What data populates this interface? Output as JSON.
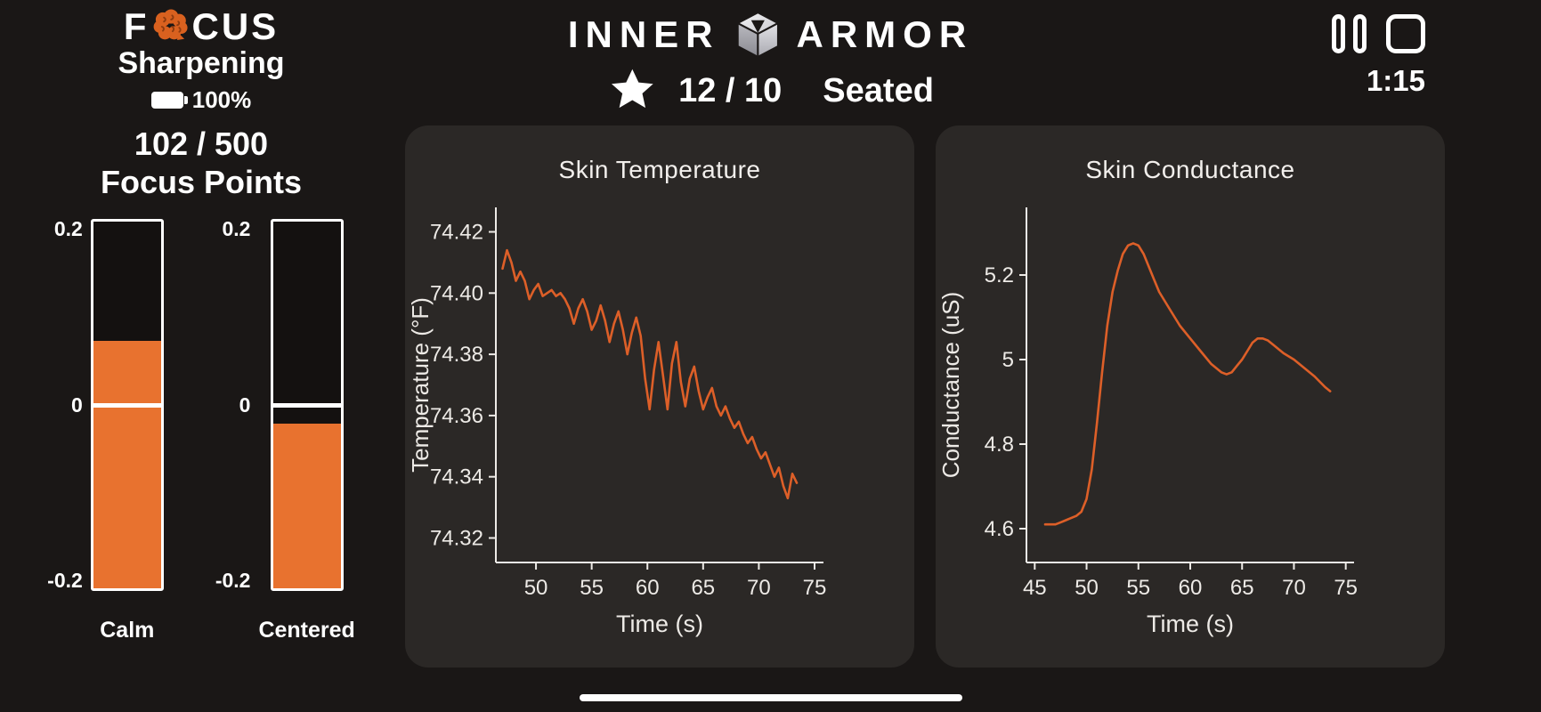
{
  "colors": {
    "background": "#1a1716",
    "card": "#2b2826",
    "accent": "#e8722f",
    "line": "#dd5f28",
    "text": "#ffffff",
    "axis": "#edeae6"
  },
  "icons": [
    "brain-icon",
    "battery-icon",
    "cube-icon",
    "star-icon",
    "pause-icon",
    "stop-icon"
  ],
  "sidebar": {
    "logo": {
      "left": "F",
      "right": "CUS"
    },
    "mode": "Sharpening",
    "battery": {
      "percent": "100%"
    },
    "score": "102 / 500",
    "score_label": "Focus Points",
    "gauges": {
      "min": -0.2,
      "max": 0.2,
      "tick_top": "0.2",
      "tick_mid": "0",
      "tick_bottom": "-0.2",
      "items": [
        {
          "label": "Calm",
          "value": 0.07
        },
        {
          "label": "Centered",
          "value": -0.02
        }
      ]
    }
  },
  "header": {
    "brand_left": "INNER",
    "brand_right": "ARMOR",
    "score": "12 / 10",
    "posture": "Seated",
    "timer": "1:15"
  },
  "chart_data": [
    {
      "type": "line",
      "title": "Skin Temperature",
      "xlabel": "Time (s)",
      "ylabel": "Temperature (°F)",
      "legend": null,
      "grid": false,
      "xlim": [
        46.4,
        75.8
      ],
      "ylim": [
        74.312,
        74.428
      ],
      "xticks": [
        50,
        55,
        60,
        65,
        70,
        75
      ],
      "xtick_labels": [
        "50",
        "55",
        "60",
        "65",
        "70",
        "75"
      ],
      "yticks": [
        74.32,
        74.34,
        74.36,
        74.38,
        74.4,
        74.42
      ],
      "ytick_labels": [
        "74.32",
        "74.34",
        "74.36",
        "74.38",
        "74.40",
        "74.42"
      ],
      "x": [
        47.0,
        47.4,
        47.8,
        48.2,
        48.6,
        49.0,
        49.4,
        49.8,
        50.2,
        50.6,
        51.0,
        51.4,
        51.8,
        52.2,
        52.6,
        53.0,
        53.4,
        53.8,
        54.2,
        54.6,
        55.0,
        55.4,
        55.8,
        56.2,
        56.6,
        57.0,
        57.4,
        57.8,
        58.2,
        58.6,
        59.0,
        59.4,
        59.8,
        60.2,
        60.6,
        61.0,
        61.4,
        61.8,
        62.2,
        62.6,
        63.0,
        63.4,
        63.8,
        64.2,
        64.6,
        65.0,
        65.4,
        65.8,
        66.2,
        66.6,
        67.0,
        67.4,
        67.8,
        68.2,
        68.6,
        69.0,
        69.4,
        69.8,
        70.2,
        70.6,
        71.0,
        71.4,
        71.8,
        72.2,
        72.6,
        73.0,
        73.4
      ],
      "y": [
        74.408,
        74.414,
        74.41,
        74.404,
        74.407,
        74.404,
        74.398,
        74.401,
        74.403,
        74.399,
        74.4,
        74.401,
        74.399,
        74.4,
        74.398,
        74.395,
        74.39,
        74.395,
        74.398,
        74.394,
        74.388,
        74.391,
        74.396,
        74.391,
        74.384,
        74.39,
        74.394,
        74.388,
        74.38,
        74.387,
        74.392,
        74.386,
        74.372,
        74.362,
        74.375,
        74.384,
        74.373,
        74.362,
        74.377,
        74.384,
        74.371,
        74.363,
        74.372,
        74.376,
        74.368,
        74.362,
        74.366,
        74.369,
        74.363,
        74.36,
        74.363,
        74.359,
        74.356,
        74.358,
        74.354,
        74.351,
        74.353,
        74.349,
        74.346,
        74.348,
        74.344,
        74.34,
        74.343,
        74.337,
        74.333,
        74.341,
        74.338
      ]
    },
    {
      "type": "line",
      "title": "Skin Conductance",
      "xlabel": "Time (s)",
      "ylabel": "Conductance (uS)",
      "legend": null,
      "grid": false,
      "xlim": [
        44.2,
        75.8
      ],
      "ylim": [
        4.52,
        5.36
      ],
      "xticks": [
        45,
        50,
        55,
        60,
        65,
        70,
        75
      ],
      "xtick_labels": [
        "45",
        "50",
        "55",
        "60",
        "65",
        "70",
        "75"
      ],
      "yticks": [
        4.6,
        4.8,
        5.0,
        5.2
      ],
      "ytick_labels": [
        "4.6",
        "4.8",
        "5",
        "5.2"
      ],
      "x": [
        46,
        46.5,
        47,
        47.5,
        48,
        48.5,
        49,
        49.5,
        50,
        50.5,
        51,
        51.5,
        52,
        52.5,
        53,
        53.5,
        54,
        54.5,
        55,
        55.5,
        56,
        56.5,
        57,
        57.5,
        58,
        59,
        60,
        61,
        62,
        63,
        63.5,
        64,
        64.5,
        65,
        65.5,
        66,
        66.5,
        67,
        67.5,
        68,
        68.5,
        69,
        70,
        71,
        72,
        73,
        73.5
      ],
      "y": [
        4.61,
        4.61,
        4.61,
        4.615,
        4.62,
        4.625,
        4.63,
        4.64,
        4.67,
        4.74,
        4.85,
        4.97,
        5.08,
        5.16,
        5.21,
        5.25,
        5.27,
        5.275,
        5.27,
        5.25,
        5.22,
        5.19,
        5.16,
        5.14,
        5.12,
        5.08,
        5.05,
        5.02,
        4.99,
        4.97,
        4.965,
        4.97,
        4.985,
        5.0,
        5.02,
        5.04,
        5.05,
        5.05,
        5.045,
        5.035,
        5.025,
        5.015,
        5.0,
        4.98,
        4.96,
        4.935,
        4.925
      ]
    }
  ]
}
